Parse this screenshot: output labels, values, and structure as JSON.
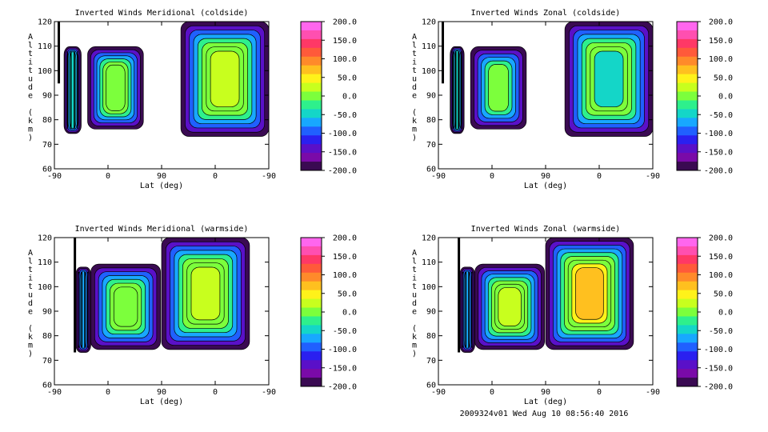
{
  "footer": "2009324v01 Wed Aug 10 08:56:40 2016",
  "colorbar": {
    "ticks": [
      "200.0",
      "150.0",
      "100.0",
      "50.0",
      "0.0",
      "-50.0",
      "-100.0",
      "-150.0",
      "-200.0"
    ],
    "colors": [
      "#ff66ee",
      "#ff4fb0",
      "#ff3866",
      "#ff5a3a",
      "#ff8a2a",
      "#ffc01f",
      "#fff21a",
      "#c8ff1e",
      "#7cff3c",
      "#2ef08c",
      "#14d6c8",
      "#18a8ff",
      "#2060ff",
      "#2a20f0",
      "#5a10c8",
      "#7a0aa8",
      "#3a0a52"
    ]
  },
  "chart_data": [
    {
      "type": "contour",
      "title": "Inverted Winds Meridional (coldside)",
      "xlabel": "Lat (deg)",
      "ylabel": "Altitude (km)",
      "x_ticks": [
        "-90",
        "0",
        "90",
        "0",
        "-90"
      ],
      "y_ticks": [
        "60",
        "70",
        "80",
        "90",
        "100",
        "110",
        "120"
      ],
      "ylim": [
        60,
        120
      ],
      "value_range": [
        -200,
        200
      ]
    },
    {
      "type": "contour",
      "title": "Inverted Winds Zonal (coldside)",
      "xlabel": "Lat (deg)",
      "ylabel": "Altitude (km)",
      "x_ticks": [
        "-90",
        "0",
        "90",
        "0",
        "-90"
      ],
      "y_ticks": [
        "60",
        "70",
        "80",
        "90",
        "100",
        "110",
        "120"
      ],
      "ylim": [
        60,
        120
      ],
      "value_range": [
        -200,
        200
      ]
    },
    {
      "type": "contour",
      "title": "Inverted Winds Meridional (warmside)",
      "xlabel": "Lat (deg)",
      "ylabel": "Altitude (km)",
      "x_ticks": [
        "-90",
        "0",
        "90",
        "0",
        "-90"
      ],
      "y_ticks": [
        "60",
        "70",
        "80",
        "90",
        "100",
        "110",
        "120"
      ],
      "ylim": [
        60,
        120
      ],
      "value_range": [
        -200,
        200
      ]
    },
    {
      "type": "contour",
      "title": "Inverted Winds Zonal (warmside)",
      "xlabel": "Lat (deg)",
      "ylabel": "Altitude (km)",
      "x_ticks": [
        "-90",
        "0",
        "90",
        "0",
        "-90"
      ],
      "y_ticks": [
        "60",
        "70",
        "80",
        "90",
        "100",
        "110",
        "120"
      ],
      "ylim": [
        60,
        120
      ],
      "value_range": [
        -200,
        200
      ]
    }
  ]
}
